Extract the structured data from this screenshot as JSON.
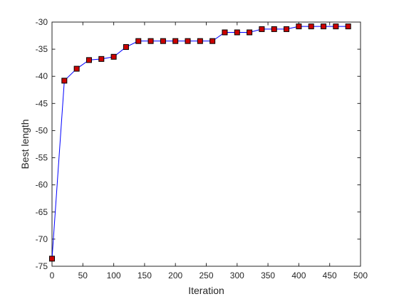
{
  "chart_data": {
    "type": "line",
    "title": "",
    "xlabel": "Iteration",
    "ylabel": "Best length",
    "xlim": [
      0,
      500
    ],
    "ylim": [
      -75,
      -30
    ],
    "xticks": [
      0,
      50,
      100,
      150,
      200,
      250,
      300,
      350,
      400,
      450,
      500
    ],
    "yticks": [
      -30,
      -35,
      -40,
      -45,
      -50,
      -55,
      -60,
      -65,
      -70,
      -75
    ],
    "grid": false,
    "legend": "none",
    "line_color": "#0000ff",
    "marker": "square",
    "marker_fill": "#cc0000",
    "marker_edge": "#000000",
    "series": [
      {
        "x": [
          0,
          20,
          40,
          60,
          80,
          100,
          120,
          140,
          160,
          180,
          200,
          220,
          240,
          260,
          280,
          300,
          320,
          340,
          360,
          380,
          400,
          420,
          440,
          460,
          480
        ],
        "y": [
          -73.6,
          -40.8,
          -38.6,
          -37.0,
          -36.8,
          -36.4,
          -34.6,
          -33.5,
          -33.5,
          -33.5,
          -33.5,
          -33.5,
          -33.5,
          -33.5,
          -31.9,
          -31.9,
          -31.9,
          -31.3,
          -31.3,
          -31.3,
          -30.8,
          -30.8,
          -30.8,
          -30.8,
          -30.8
        ]
      }
    ]
  }
}
